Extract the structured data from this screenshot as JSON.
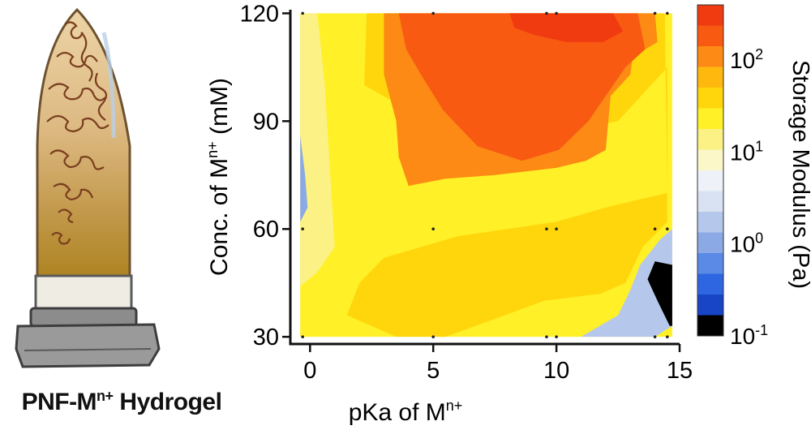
{
  "caption": {
    "prefix": "PNF-M",
    "superscript": "n+",
    "suffix": " Hydrogel"
  },
  "chart_data": {
    "type": "heatmap",
    "subtype": "filled-contour",
    "x": {
      "label_prefix": "pKa of M",
      "label_superscript": "n+",
      "ticks": [
        "0",
        "5",
        "10",
        "15"
      ],
      "tick_values": [
        0,
        5,
        10,
        15
      ],
      "range": [
        -0.8,
        15
      ]
    },
    "y": {
      "label_prefix": "Conc. of  M",
      "label_superscript": "n+",
      "label_suffix": " (mM)",
      "ticks": [
        "30",
        "60",
        "90",
        "120"
      ],
      "tick_values": [
        30,
        60,
        90,
        120
      ],
      "range": [
        28,
        121
      ]
    },
    "colorbar": {
      "label": "Storage Modulus (Pa)",
      "scale": "log",
      "range": [
        0.1,
        400
      ],
      "tick_labels": [
        {
          "base": "10",
          "exp": "2",
          "value": 100
        },
        {
          "base": "10",
          "exp": "1",
          "value": 10
        },
        {
          "base": "10",
          "exp": "0",
          "value": 1
        },
        {
          "base": "10",
          "exp": "-1",
          "value": 0.1
        }
      ],
      "levels": [
        "#f03a10",
        "#f85a12",
        "#fc8a14",
        "#ffb90e",
        "#ffd60c",
        "#fff027",
        "#fbf184",
        "#fbf7c8",
        "#eef2f8",
        "#d8e2f3",
        "#b5c8ec",
        "#8ba9e4",
        "#5a8ae6",
        "#2e66e2",
        "#1844c6",
        "#000000"
      ]
    },
    "regions": [
      {
        "name": "low-pka-edge",
        "level": "#fbf184",
        "points": [
          [
            -0.4,
            120
          ],
          [
            0.3,
            120
          ],
          [
            0.6,
            100
          ],
          [
            1.0,
            55
          ],
          [
            0.3,
            48
          ],
          [
            -0.4,
            44
          ]
        ]
      },
      {
        "name": "low-pka-blue-dip",
        "level": "#8ba9e4",
        "points": [
          [
            -0.4,
            86
          ],
          [
            -0.2,
            75
          ],
          [
            -0.1,
            66
          ],
          [
            -0.4,
            62
          ]
        ]
      },
      {
        "name": "moderate-modulus-band",
        "level": "#ffd60c",
        "points": [
          [
            2.3,
            120
          ],
          [
            14.4,
            120
          ],
          [
            14.5,
            70
          ],
          [
            12.0,
            66
          ],
          [
            10.0,
            62
          ],
          [
            6.0,
            58
          ],
          [
            3.0,
            52
          ],
          [
            2.0,
            45
          ],
          [
            1.5,
            36
          ],
          [
            3.5,
            30
          ],
          [
            5.5,
            30
          ],
          [
            7.5,
            35
          ],
          [
            9.5,
            40
          ],
          [
            11.8,
            42
          ],
          [
            12.8,
            45
          ],
          [
            13.5,
            55
          ],
          [
            14.5,
            62
          ],
          [
            14.5,
            105
          ],
          [
            12.5,
            90
          ],
          [
            11.0,
            88
          ],
          [
            9.0,
            91
          ],
          [
            4.0,
            93
          ],
          [
            2.2,
            100
          ]
        ]
      },
      {
        "name": "high-modulus-outer",
        "level": "#fc8a14",
        "points": [
          [
            3.0,
            120
          ],
          [
            14.0,
            120
          ],
          [
            14.1,
            112
          ],
          [
            13.1,
            108
          ],
          [
            13.0,
            103
          ],
          [
            12.2,
            97
          ],
          [
            12.0,
            82
          ],
          [
            11.2,
            79
          ],
          [
            10.0,
            77
          ],
          [
            7.5,
            75
          ],
          [
            5.5,
            74
          ],
          [
            4.0,
            72
          ],
          [
            3.6,
            80
          ],
          [
            3.5,
            90
          ],
          [
            3.0,
            103
          ]
        ]
      },
      {
        "name": "high-modulus-core",
        "level": "#f85a12",
        "points": [
          [
            3.6,
            120
          ],
          [
            13.3,
            120
          ],
          [
            13.6,
            110
          ],
          [
            12.8,
            105
          ],
          [
            12.1,
            98
          ],
          [
            11.3,
            90
          ],
          [
            10.1,
            82
          ],
          [
            8.6,
            79
          ],
          [
            6.8,
            83
          ],
          [
            5.4,
            93
          ],
          [
            4.5,
            103
          ],
          [
            3.9,
            110
          ]
        ]
      },
      {
        "name": "peak-modulus",
        "level": "#f03a10",
        "points": [
          [
            8.1,
            120
          ],
          [
            12.3,
            120
          ],
          [
            12.7,
            115
          ],
          [
            11.9,
            112
          ],
          [
            10.4,
            112
          ],
          [
            9.1,
            114
          ],
          [
            8.3,
            116
          ]
        ]
      },
      {
        "name": "high-pka-low-conc-blue",
        "level": "#b5c8ec",
        "points": [
          [
            11.0,
            30
          ],
          [
            14.0,
            30
          ],
          [
            14.7,
            33
          ],
          [
            14.7,
            60
          ],
          [
            14.2,
            57
          ],
          [
            13.4,
            50
          ],
          [
            13.0,
            43
          ],
          [
            12.5,
            36
          ],
          [
            11.5,
            32
          ]
        ]
      },
      {
        "name": "high-pka-low-conc-dark",
        "level": "#000000",
        "points": [
          [
            14.6,
            33
          ],
          [
            14.7,
            33
          ],
          [
            14.7,
            50
          ],
          [
            14.0,
            51
          ],
          [
            13.7,
            46
          ],
          [
            14.1,
            40
          ]
        ]
      }
    ],
    "sample_points": [
      [
        -0.3,
        120
      ],
      [
        5,
        120
      ],
      [
        9.6,
        120
      ],
      [
        10,
        120
      ],
      [
        14,
        120
      ],
      [
        14.5,
        120
      ],
      [
        -0.3,
        60
      ],
      [
        5,
        60
      ],
      [
        9.6,
        60
      ],
      [
        10,
        60
      ],
      [
        14,
        60
      ],
      [
        14.5,
        60
      ],
      [
        -0.3,
        30
      ],
      [
        5,
        30
      ],
      [
        9.6,
        30
      ],
      [
        10,
        30
      ],
      [
        14,
        30
      ],
      [
        14.5,
        30
      ]
    ]
  }
}
